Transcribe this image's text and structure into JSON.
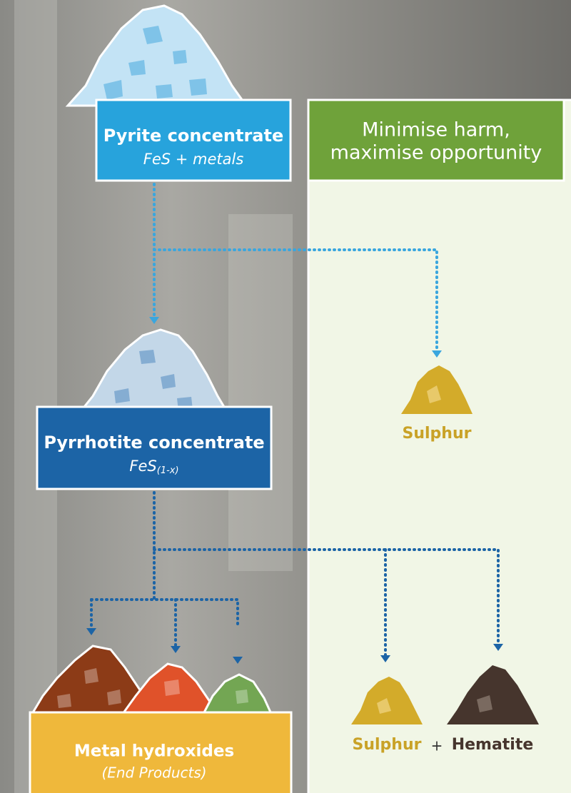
{
  "pyrite": {
    "title": "Pyrite concentrate",
    "formula": "FeS + metals"
  },
  "panel": {
    "lines": [
      "Minimise harm,",
      "maximise opportunity"
    ]
  },
  "pyrrhotite": {
    "title": "Pyrrhotite concentrate",
    "formula": "FeS",
    "subscript": "(1-x)"
  },
  "sulphur_top": {
    "label": "Sulphur"
  },
  "metal_hydroxides": {
    "title": "Metal hydroxides",
    "subtitle": "(End Products)"
  },
  "bottom_right": {
    "sulphur": "Sulphur",
    "plus": "+",
    "hematite": "Hematite"
  }
}
